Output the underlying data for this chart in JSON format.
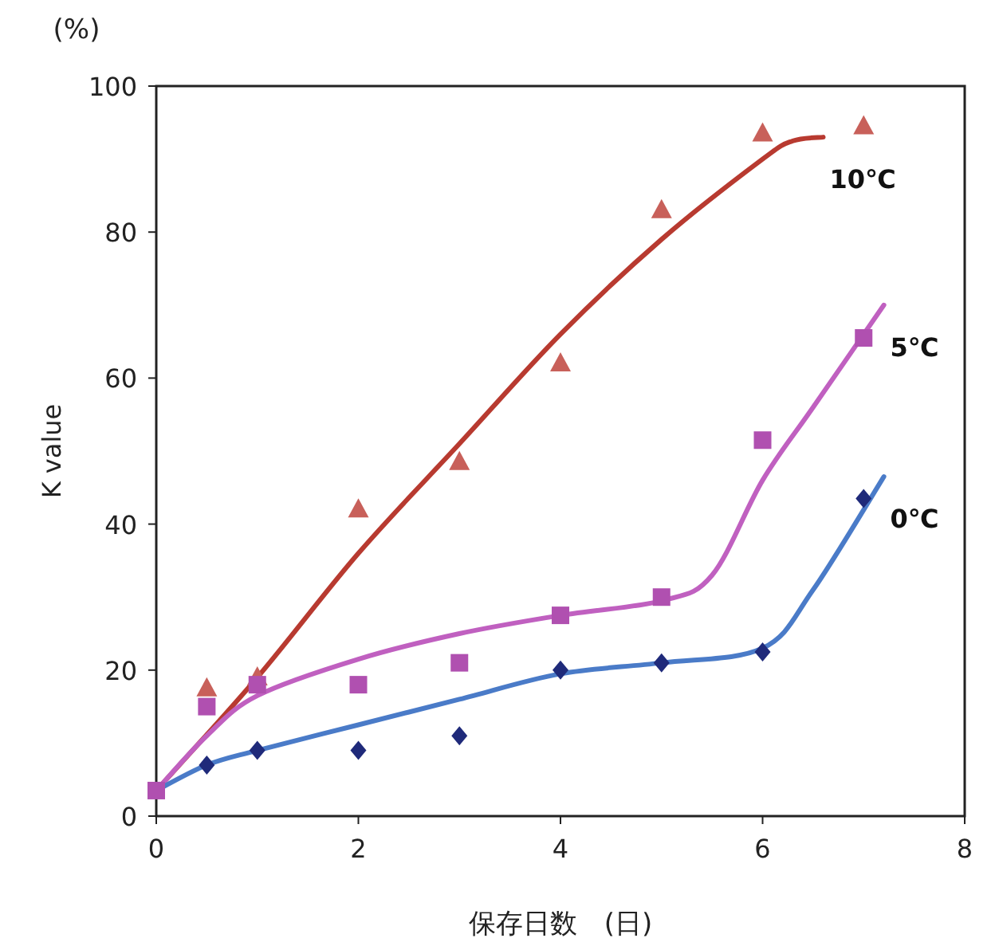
{
  "chart_data": {
    "type": "scatter",
    "xlabel": "保存日数　(日)",
    "ylabel": "K value",
    "annotations": [
      "(%)"
    ],
    "xlim": [
      0,
      8
    ],
    "ylim": [
      0,
      100
    ],
    "xticks": [
      0,
      2,
      4,
      6,
      8
    ],
    "yticks": [
      0,
      20,
      40,
      60,
      80,
      100
    ],
    "grid": false,
    "series": [
      {
        "type": "line",
        "name": "10℃",
        "color": "#b83a30",
        "x": [
          0,
          1,
          2,
          3,
          4,
          5,
          6,
          6.3,
          6.6
        ],
        "values": [
          3.5,
          19,
          36,
          51,
          66,
          79,
          90,
          92.5,
          93
        ]
      },
      {
        "type": "line",
        "name": "5℃",
        "color": "#c060c0",
        "x": [
          0,
          0.5,
          1,
          2,
          3,
          4,
          5,
          5.5,
          6,
          6.5,
          7.2
        ],
        "values": [
          3.5,
          11,
          16.5,
          21.5,
          25,
          27.5,
          29.5,
          33,
          46,
          56,
          70
        ]
      },
      {
        "type": "line",
        "name": "0℃",
        "color": "#4a7bc8",
        "x": [
          0,
          0.5,
          1,
          2,
          3,
          4,
          5,
          6,
          6.5,
          7.2
        ],
        "values": [
          3.5,
          7,
          9,
          12.5,
          16,
          19.5,
          21,
          23,
          31,
          46.5
        ]
      },
      {
        "marker": "triangle",
        "color": "#c8605a",
        "x": [
          0.5,
          1,
          2,
          3,
          4,
          5,
          6,
          7
        ],
        "values": [
          17.5,
          19,
          42,
          48.5,
          62,
          83,
          93.5,
          94.5
        ]
      },
      {
        "marker": "diamond",
        "color": "#1f2a7a",
        "x": [
          0.5,
          1,
          2,
          3,
          4,
          5,
          6,
          7
        ],
        "values": [
          7,
          9,
          9,
          11,
          20,
          21,
          22.5,
          43.5
        ]
      },
      {
        "marker": "square",
        "color": "#b050b0",
        "x": [
          0,
          0.5,
          1,
          2,
          3,
          4,
          5,
          6,
          7
        ],
        "values": [
          3.5,
          15,
          18,
          18,
          21,
          27.5,
          30,
          51.5,
          65.5
        ]
      }
    ]
  }
}
